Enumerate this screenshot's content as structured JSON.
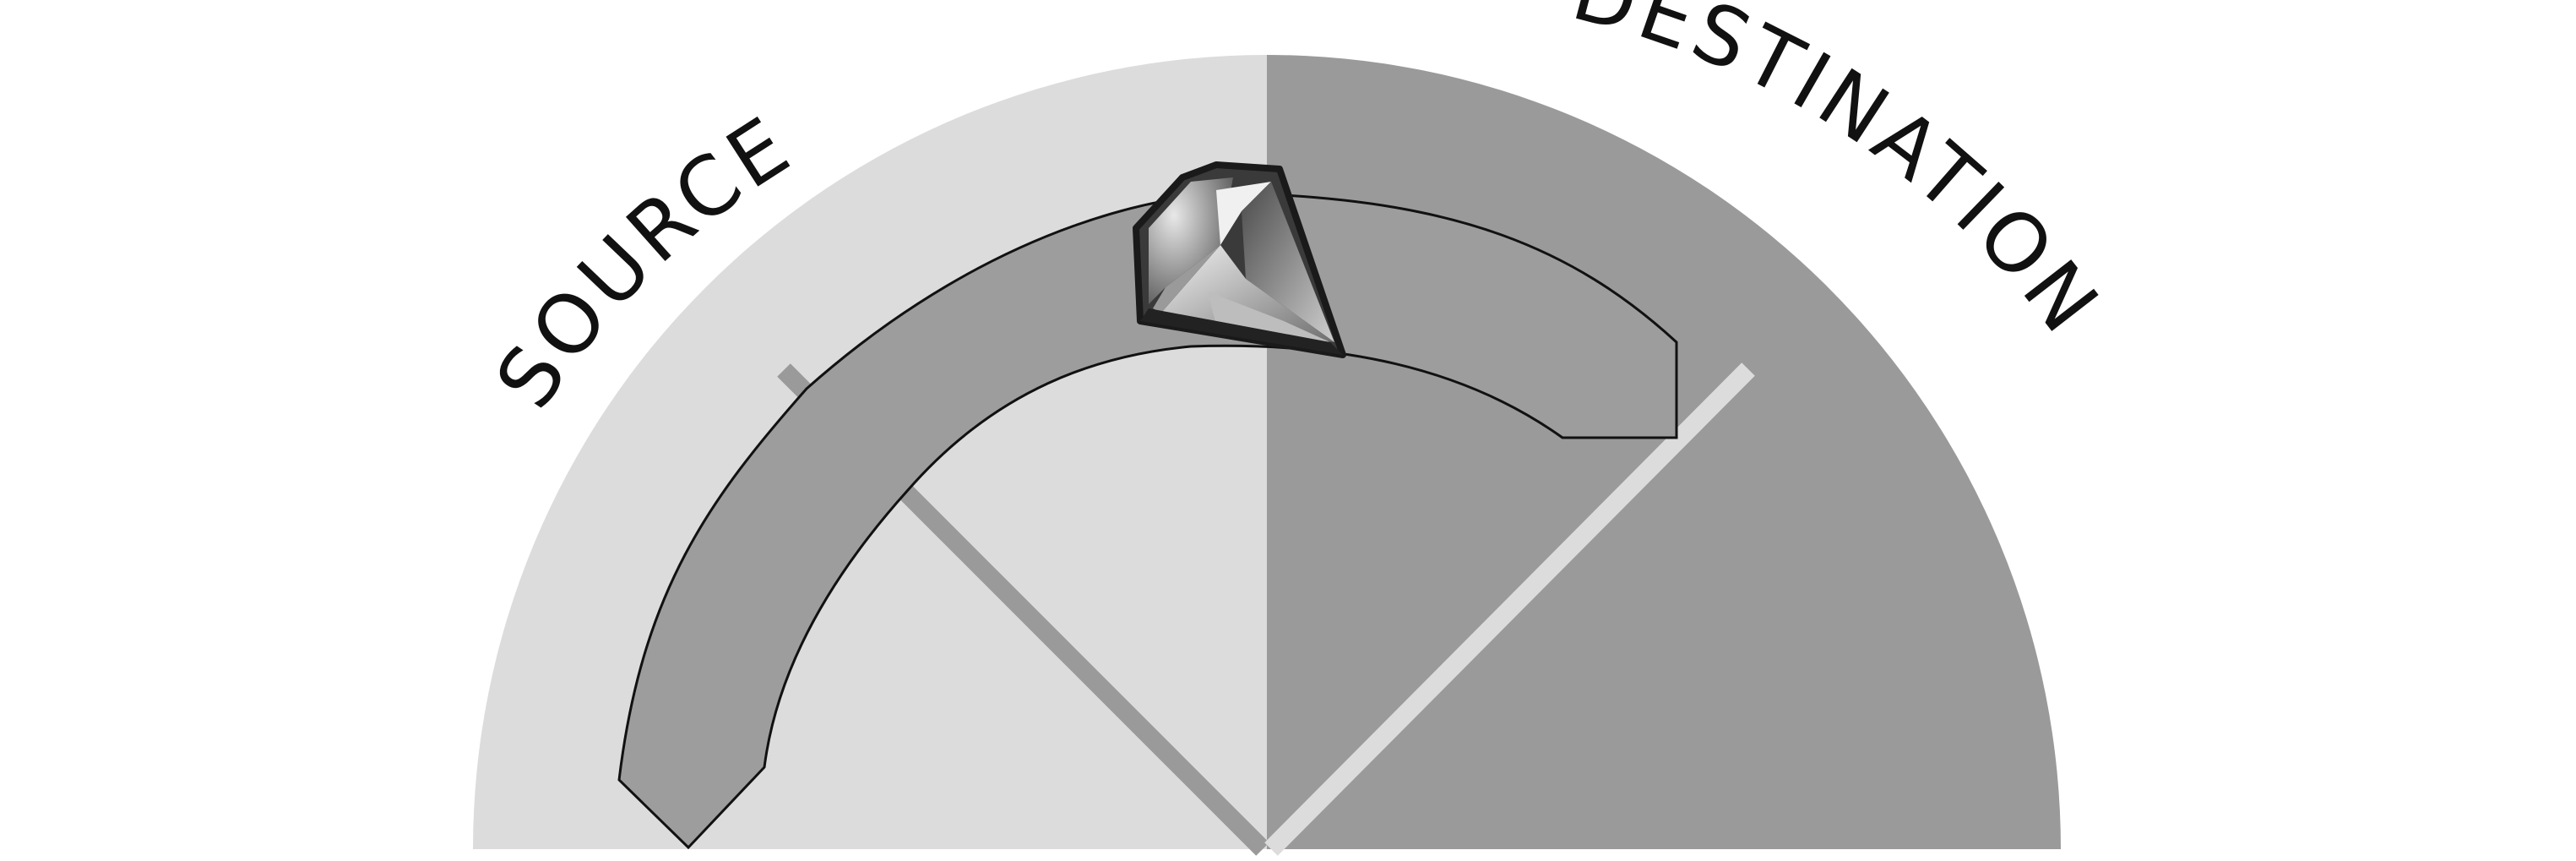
{
  "labels": {
    "source": "SOURCE",
    "destination": "DESTINATION"
  },
  "colors": {
    "source_half": "#dcdcdc",
    "destination_half": "#9a9a9a",
    "arrow_fill": "#9d9d9d",
    "label_text": "#111111",
    "diamond_dark": "#2b2b2b",
    "diamond_mid": "#7a7a7a",
    "diamond_light": "#d8d8d8"
  },
  "icons": {
    "center_gem": "diamond-icon"
  }
}
